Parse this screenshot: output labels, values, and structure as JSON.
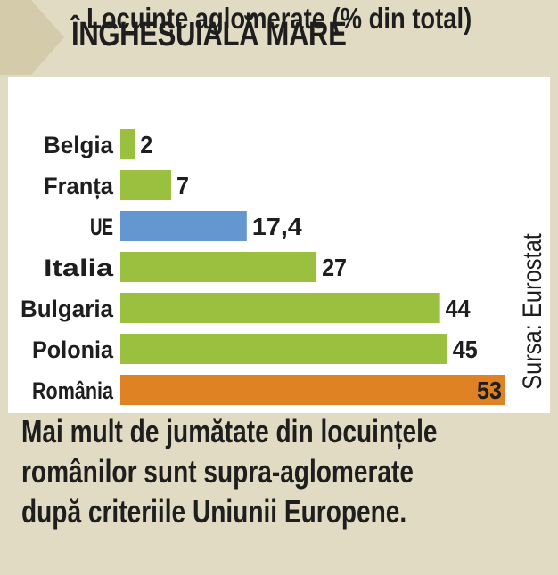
{
  "header": {
    "title": "ÎNGHESUIALĂ MARE"
  },
  "chart_data": {
    "type": "bar",
    "orientation": "horizontal",
    "title": "Locuințe aglomerate (% din total)",
    "categories": [
      "Belgia",
      "Franța",
      "UE",
      "Italia",
      "Bulgaria",
      "Polonia",
      "România"
    ],
    "values": [
      2,
      7,
      17.4,
      27,
      44,
      45,
      53
    ],
    "value_labels": [
      "2",
      "7",
      "17,4",
      "27",
      "44",
      "45",
      "53"
    ],
    "bar_colors": [
      "#9bc040",
      "#9bc040",
      "#6496d0",
      "#9bc040",
      "#9bc040",
      "#9bc040",
      "#df8223"
    ],
    "xlim": [
      0,
      53
    ],
    "grid": false,
    "legend": "none",
    "source": "Sursa: Eurostat"
  },
  "caption": {
    "lines": [
      "Mai mult de jumătate din locuințele",
      "românilor sunt supra-aglomerate",
      "după criteriile Uniunii Europene."
    ]
  },
  "colors": {
    "background": "#e1dbc3",
    "arrow": "#d3cbaa",
    "panel": "#ffffff",
    "text": "#1e1e1e"
  }
}
